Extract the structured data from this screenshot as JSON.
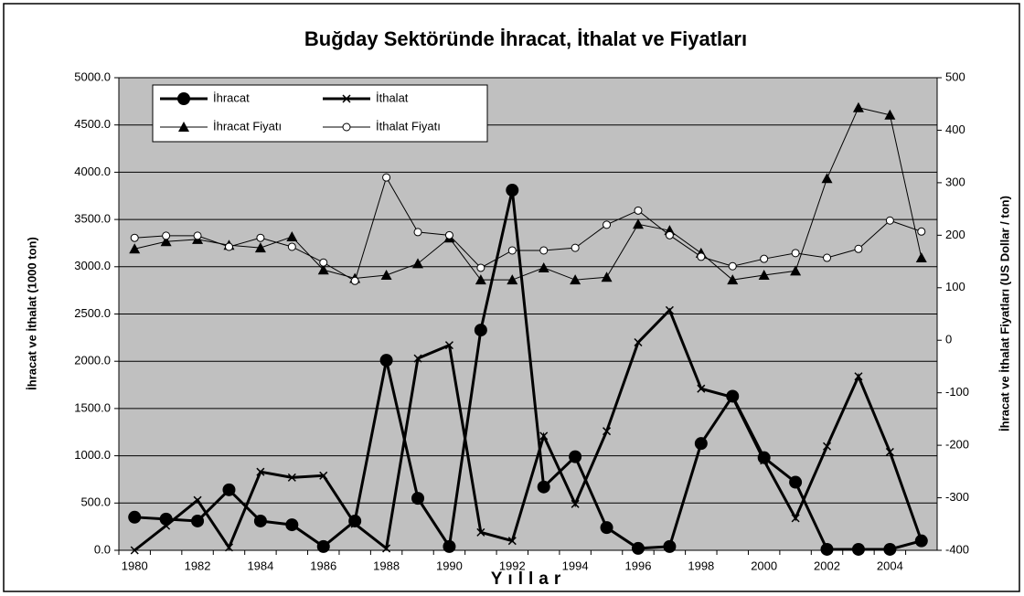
{
  "chart_data": {
    "type": "line",
    "title": "Buğday Sektöründe İhracat, İthalat ve Fiyatları",
    "x_label": "Yıllar",
    "y_label": "İhracat ve İthalat (1000 ton)",
    "y2_label": "İhracat ve İthalat Fiyatları (US Dollar / ton)",
    "categories": [
      "1980",
      null,
      "1982",
      null,
      "1984",
      null,
      "1986",
      null,
      "1988",
      null,
      "1990",
      null,
      "1992",
      null,
      "1994",
      null,
      "1996",
      null,
      "1998",
      null,
      "2000",
      null,
      "2002",
      null,
      "2004",
      null
    ],
    "ylim": [
      0,
      5000
    ],
    "yticks": [
      {
        "value": 0,
        "label": "0.0"
      },
      {
        "value": 500,
        "label": "500.0"
      },
      {
        "value": 1000,
        "label": "1000.0"
      },
      {
        "value": 1500,
        "label": "1500.0"
      },
      {
        "value": 2000,
        "label": "2000.0"
      },
      {
        "value": 2500,
        "label": "2500.0"
      },
      {
        "value": 3000,
        "label": "3000.0"
      },
      {
        "value": 3500,
        "label": "3500.0"
      },
      {
        "value": 4000,
        "label": "4000.0"
      },
      {
        "value": 4500,
        "label": "4500.0"
      },
      {
        "value": 5000,
        "label": "5000.0"
      }
    ],
    "y2lim": [
      -400,
      500
    ],
    "y2ticks": [
      -400,
      -300,
      -200,
      -100,
      0,
      100,
      200,
      300,
      400,
      500
    ],
    "grid": true,
    "legend": "upper left",
    "series": [
      {
        "name": "İhracat",
        "color": "#000000",
        "marker": "filled-circle",
        "axis": "y",
        "values": [
          350,
          330,
          310,
          640,
          310,
          270,
          40,
          310,
          2010,
          550,
          40,
          2330,
          3810,
          670,
          990,
          240,
          20,
          40,
          1130,
          1630,
          980,
          720,
          10,
          10,
          10,
          100
        ]
      },
      {
        "name": "İthalat",
        "color": "#000000",
        "marker": "x",
        "axis": "y",
        "values": [
          0,
          260,
          530,
          30,
          830,
          770,
          790,
          280,
          20,
          2030,
          2170,
          190,
          100,
          1210,
          490,
          1260,
          2200,
          2540,
          1710,
          1620,
          950,
          340,
          1100,
          1840,
          1040,
          100
        ]
      },
      {
        "name": "İhracat Fiyatı",
        "color": "#000000",
        "marker": "triangle",
        "axis": "y2",
        "values": [
          174,
          188,
          192,
          181,
          176,
          197,
          134,
          118,
          124,
          146,
          195,
          115,
          115,
          138,
          115,
          120,
          221,
          209,
          166,
          115,
          124,
          132,
          308,
          443,
          429,
          157
        ]
      },
      {
        "name": "İthalat Fiyatı",
        "color": "#000000",
        "marker": "open-circle",
        "axis": "y2",
        "values": [
          195,
          199,
          199,
          178,
          195,
          178,
          148,
          113,
          310,
          206,
          200,
          138,
          171,
          171,
          176,
          220,
          247,
          200,
          159,
          141,
          155,
          166,
          157,
          174,
          228,
          207
        ]
      }
    ]
  }
}
